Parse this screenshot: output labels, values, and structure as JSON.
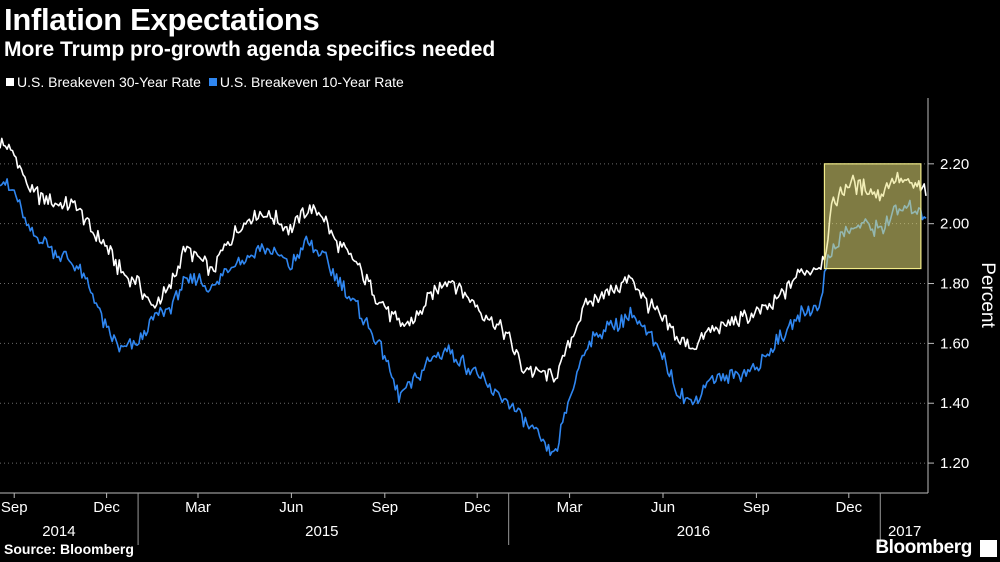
{
  "title": "Inflation Expectations",
  "subtitle": "More Trump pro-growth agenda specifics needed",
  "source": "Source: Bloomberg",
  "brand": "Bloomberg",
  "chart_data": {
    "type": "line",
    "ylabel": "Percent",
    "ylim": [
      1.1,
      2.42
    ],
    "y_ticks": [
      "2.20",
      "2.00",
      "1.80",
      "1.60",
      "1.40",
      "1.20"
    ],
    "y_tick_values": [
      2.2,
      2.0,
      1.8,
      1.6,
      1.4,
      1.2
    ],
    "x_range": [
      "2014-08-18",
      "2017-02-17"
    ],
    "x_ticks": [
      {
        "label": "Sep",
        "date": "2014-09-01"
      },
      {
        "label": "Dec",
        "date": "2014-12-01"
      },
      {
        "label": "Mar",
        "date": "2015-03-01"
      },
      {
        "label": "Jun",
        "date": "2015-06-01"
      },
      {
        "label": "Sep",
        "date": "2015-09-01"
      },
      {
        "label": "Dec",
        "date": "2015-12-01"
      },
      {
        "label": "Mar",
        "date": "2016-03-01"
      },
      {
        "label": "Jun",
        "date": "2016-06-01"
      },
      {
        "label": "Sep",
        "date": "2016-09-01"
      },
      {
        "label": "Dec",
        "date": "2016-12-01"
      }
    ],
    "year_labels": [
      {
        "label": "2014",
        "date": "2014-10-15"
      },
      {
        "label": "2015",
        "date": "2015-07-01"
      },
      {
        "label": "2016",
        "date": "2016-07-01"
      },
      {
        "label": "2017",
        "date": "2017-01-25"
      }
    ],
    "year_dividers": [
      "2015-01-01",
      "2016-01-01",
      "2017-01-01"
    ],
    "legend_position": "top-left",
    "grid": "horizontal-dotted",
    "highlight_box": {
      "x_start": "2016-11-07",
      "x_end": "2017-02-10",
      "y_low": 1.85,
      "y_high": 2.2,
      "color": "#e8e07a"
    },
    "series": [
      {
        "name": "U.S. Breakeven 30-Year Rate",
        "color": "#ffffff",
        "points": [
          [
            "2014-08-18",
            2.27
          ],
          [
            "2014-09-01",
            2.23
          ],
          [
            "2014-09-15",
            2.12
          ],
          [
            "2014-10-01",
            2.08
          ],
          [
            "2014-10-15",
            2.06
          ],
          [
            "2014-11-01",
            2.06
          ],
          [
            "2014-11-15",
            1.98
          ],
          [
            "2014-12-01",
            1.92
          ],
          [
            "2014-12-15",
            1.84
          ],
          [
            "2015-01-01",
            1.8
          ],
          [
            "2015-01-15",
            1.72
          ],
          [
            "2015-02-01",
            1.78
          ],
          [
            "2015-02-15",
            1.92
          ],
          [
            "2015-03-01",
            1.88
          ],
          [
            "2015-03-15",
            1.84
          ],
          [
            "2015-04-01",
            1.95
          ],
          [
            "2015-04-15",
            2.0
          ],
          [
            "2015-05-01",
            2.04
          ],
          [
            "2015-05-15",
            2.02
          ],
          [
            "2015-06-01",
            1.98
          ],
          [
            "2015-06-15",
            2.05
          ],
          [
            "2015-07-01",
            2.03
          ],
          [
            "2015-07-15",
            1.94
          ],
          [
            "2015-08-01",
            1.88
          ],
          [
            "2015-08-15",
            1.8
          ],
          [
            "2015-09-01",
            1.72
          ],
          [
            "2015-09-15",
            1.66
          ],
          [
            "2015-10-01",
            1.68
          ],
          [
            "2015-10-15",
            1.75
          ],
          [
            "2015-11-01",
            1.82
          ],
          [
            "2015-11-15",
            1.78
          ],
          [
            "2015-12-01",
            1.72
          ],
          [
            "2015-12-15",
            1.68
          ],
          [
            "2016-01-01",
            1.62
          ],
          [
            "2016-01-15",
            1.52
          ],
          [
            "2016-02-01",
            1.5
          ],
          [
            "2016-02-15",
            1.48
          ],
          [
            "2016-03-01",
            1.6
          ],
          [
            "2016-03-15",
            1.72
          ],
          [
            "2016-04-01",
            1.77
          ],
          [
            "2016-04-15",
            1.78
          ],
          [
            "2016-05-01",
            1.82
          ],
          [
            "2016-05-15",
            1.74
          ],
          [
            "2016-06-01",
            1.68
          ],
          [
            "2016-06-15",
            1.62
          ],
          [
            "2016-07-01",
            1.58
          ],
          [
            "2016-07-15",
            1.64
          ],
          [
            "2016-08-01",
            1.66
          ],
          [
            "2016-08-15",
            1.68
          ],
          [
            "2016-09-01",
            1.7
          ],
          [
            "2016-09-15",
            1.72
          ],
          [
            "2016-10-01",
            1.78
          ],
          [
            "2016-10-15",
            1.84
          ],
          [
            "2016-11-01",
            1.86
          ],
          [
            "2016-11-08",
            1.9
          ],
          [
            "2016-11-15",
            2.06
          ],
          [
            "2016-12-01",
            2.14
          ],
          [
            "2016-12-15",
            2.12
          ],
          [
            "2017-01-01",
            2.1
          ],
          [
            "2017-01-15",
            2.15
          ],
          [
            "2017-02-01",
            2.13
          ],
          [
            "2017-02-15",
            2.11
          ]
        ]
      },
      {
        "name": "U.S. Breakeven 10-Year Rate",
        "color": "#2f86f0",
        "points": [
          [
            "2014-08-18",
            2.15
          ],
          [
            "2014-09-01",
            2.1
          ],
          [
            "2014-09-15",
            1.98
          ],
          [
            "2014-10-01",
            1.94
          ],
          [
            "2014-10-15",
            1.9
          ],
          [
            "2014-11-01",
            1.86
          ],
          [
            "2014-11-15",
            1.78
          ],
          [
            "2014-12-01",
            1.64
          ],
          [
            "2014-12-15",
            1.58
          ],
          [
            "2015-01-01",
            1.6
          ],
          [
            "2015-01-15",
            1.68
          ],
          [
            "2015-02-01",
            1.72
          ],
          [
            "2015-02-15",
            1.8
          ],
          [
            "2015-03-01",
            1.82
          ],
          [
            "2015-03-15",
            1.78
          ],
          [
            "2015-04-01",
            1.86
          ],
          [
            "2015-04-15",
            1.88
          ],
          [
            "2015-05-01",
            1.92
          ],
          [
            "2015-05-15",
            1.9
          ],
          [
            "2015-06-01",
            1.86
          ],
          [
            "2015-06-15",
            1.94
          ],
          [
            "2015-07-01",
            1.9
          ],
          [
            "2015-07-15",
            1.82
          ],
          [
            "2015-08-01",
            1.74
          ],
          [
            "2015-08-15",
            1.66
          ],
          [
            "2015-09-01",
            1.56
          ],
          [
            "2015-09-15",
            1.42
          ],
          [
            "2015-10-01",
            1.48
          ],
          [
            "2015-10-15",
            1.54
          ],
          [
            "2015-11-01",
            1.58
          ],
          [
            "2015-11-15",
            1.54
          ],
          [
            "2015-12-01",
            1.5
          ],
          [
            "2015-12-15",
            1.44
          ],
          [
            "2016-01-01",
            1.4
          ],
          [
            "2016-01-15",
            1.34
          ],
          [
            "2016-02-01",
            1.28
          ],
          [
            "2016-02-15",
            1.22
          ],
          [
            "2016-03-01",
            1.42
          ],
          [
            "2016-03-15",
            1.58
          ],
          [
            "2016-04-01",
            1.64
          ],
          [
            "2016-04-15",
            1.66
          ],
          [
            "2016-05-01",
            1.7
          ],
          [
            "2016-05-15",
            1.64
          ],
          [
            "2016-06-01",
            1.56
          ],
          [
            "2016-06-15",
            1.44
          ],
          [
            "2016-07-01",
            1.4
          ],
          [
            "2016-07-15",
            1.48
          ],
          [
            "2016-08-01",
            1.48
          ],
          [
            "2016-08-15",
            1.5
          ],
          [
            "2016-09-01",
            1.52
          ],
          [
            "2016-09-15",
            1.58
          ],
          [
            "2016-10-01",
            1.64
          ],
          [
            "2016-10-15",
            1.7
          ],
          [
            "2016-11-01",
            1.72
          ],
          [
            "2016-11-08",
            1.84
          ],
          [
            "2016-11-15",
            1.92
          ],
          [
            "2016-12-01",
            1.98
          ],
          [
            "2016-12-15",
            2.0
          ],
          [
            "2017-01-01",
            1.98
          ],
          [
            "2017-01-15",
            2.04
          ],
          [
            "2017-02-01",
            2.05
          ],
          [
            "2017-02-15",
            2.03
          ]
        ]
      }
    ]
  }
}
